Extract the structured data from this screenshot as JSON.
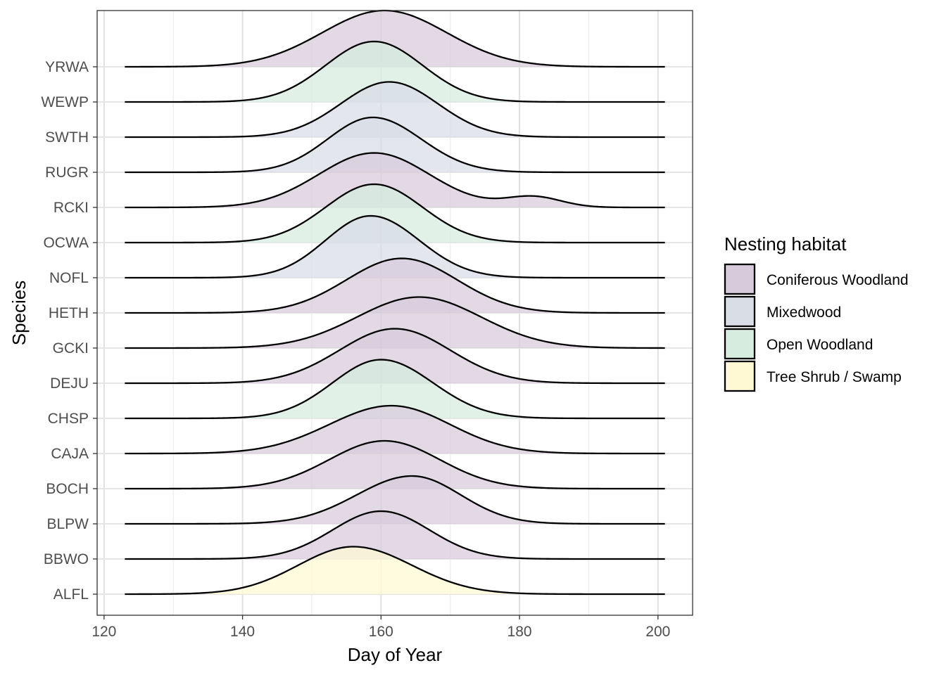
{
  "chart_data": {
    "type": "ridgeline",
    "title": "",
    "xlabel": "Day of Year",
    "ylabel": "Species",
    "xlim": [
      119,
      205
    ],
    "x_ticks": [
      120,
      140,
      160,
      180,
      200
    ],
    "x_range_drawn": [
      123,
      201
    ],
    "grid": true,
    "legend": {
      "title": "Nesting habitat",
      "position": "right",
      "entries": [
        {
          "label": "Coniferous Woodland",
          "color": "#d7cbdb"
        },
        {
          "label": "Mixedwood",
          "color": "#d8dde6"
        },
        {
          "label": "Open Woodland",
          "color": "#d5ecdf"
        },
        {
          "label": "Tree Shrub / Swamp",
          "color": "#fef9d2"
        }
      ]
    },
    "species": [
      {
        "name": "ALFL",
        "habitat": "Tree Shrub / Swamp",
        "peak_day": 156,
        "spread_left": 8,
        "spread_right": 8.5,
        "peak_height": 1.35
      },
      {
        "name": "BBWO",
        "habitat": "Coniferous Woodland",
        "peak_day": 160,
        "spread_left": 7,
        "spread_right": 7,
        "peak_height": 1.36
      },
      {
        "name": "BLPW",
        "habitat": "Coniferous Woodland",
        "peak_day": 164.5,
        "spread_left": 8,
        "spread_right": 7,
        "peak_height": 1.36
      },
      {
        "name": "BOCH",
        "habitat": "Coniferous Woodland",
        "peak_day": 160.5,
        "spread_left": 8,
        "spread_right": 8,
        "peak_height": 1.36
      },
      {
        "name": "CAJA",
        "habitat": "Coniferous Woodland",
        "peak_day": 161.5,
        "spread_left": 9,
        "spread_right": 8.5,
        "peak_height": 1.36
      },
      {
        "name": "CHSP",
        "habitat": "Open Woodland",
        "peak_day": 160,
        "spread_left": 7,
        "spread_right": 7.5,
        "peak_height": 1.67
      },
      {
        "name": "DEJU",
        "habitat": "Coniferous Woodland",
        "peak_day": 162,
        "spread_left": 8,
        "spread_right": 8,
        "peak_height": 1.55
      },
      {
        "name": "GCKI",
        "habitat": "Coniferous Woodland",
        "peak_day": 165.5,
        "spread_left": 9,
        "spread_right": 9,
        "peak_height": 1.45
      },
      {
        "name": "HETH",
        "habitat": "Coniferous Woodland",
        "peak_day": 163,
        "spread_left": 8,
        "spread_right": 8,
        "peak_height": 1.55
      },
      {
        "name": "NOFL",
        "habitat": "Mixedwood",
        "peak_day": 158.5,
        "spread_left": 6.5,
        "spread_right": 7,
        "peak_height": 1.76
      },
      {
        "name": "OCWA",
        "habitat": "Open Woodland",
        "peak_day": 159,
        "spread_left": 7,
        "spread_right": 7,
        "peak_height": 1.66
      },
      {
        "name": "RCKI",
        "habitat": "Coniferous Woodland",
        "peak_day": 159,
        "spread_left": 8,
        "spread_right": 8,
        "peak_height": 1.55,
        "tail_day": 182,
        "tail_height": 0.3
      },
      {
        "name": "RUGR",
        "habitat": "Mixedwood",
        "peak_day": 158.8,
        "spread_left": 6.5,
        "spread_right": 7,
        "peak_height": 1.56
      },
      {
        "name": "SWTH",
        "habitat": "Mixedwood",
        "peak_day": 161.2,
        "spread_left": 7,
        "spread_right": 7,
        "peak_height": 1.57
      },
      {
        "name": "WEWP",
        "habitat": "Open Woodland",
        "peak_day": 159,
        "spread_left": 7,
        "spread_right": 7,
        "peak_height": 1.72
      },
      {
        "name": "YRWA",
        "habitat": "Coniferous Woodland",
        "peak_day": 160.5,
        "spread_left": 9,
        "spread_right": 9,
        "peak_height": 1.6
      }
    ]
  }
}
